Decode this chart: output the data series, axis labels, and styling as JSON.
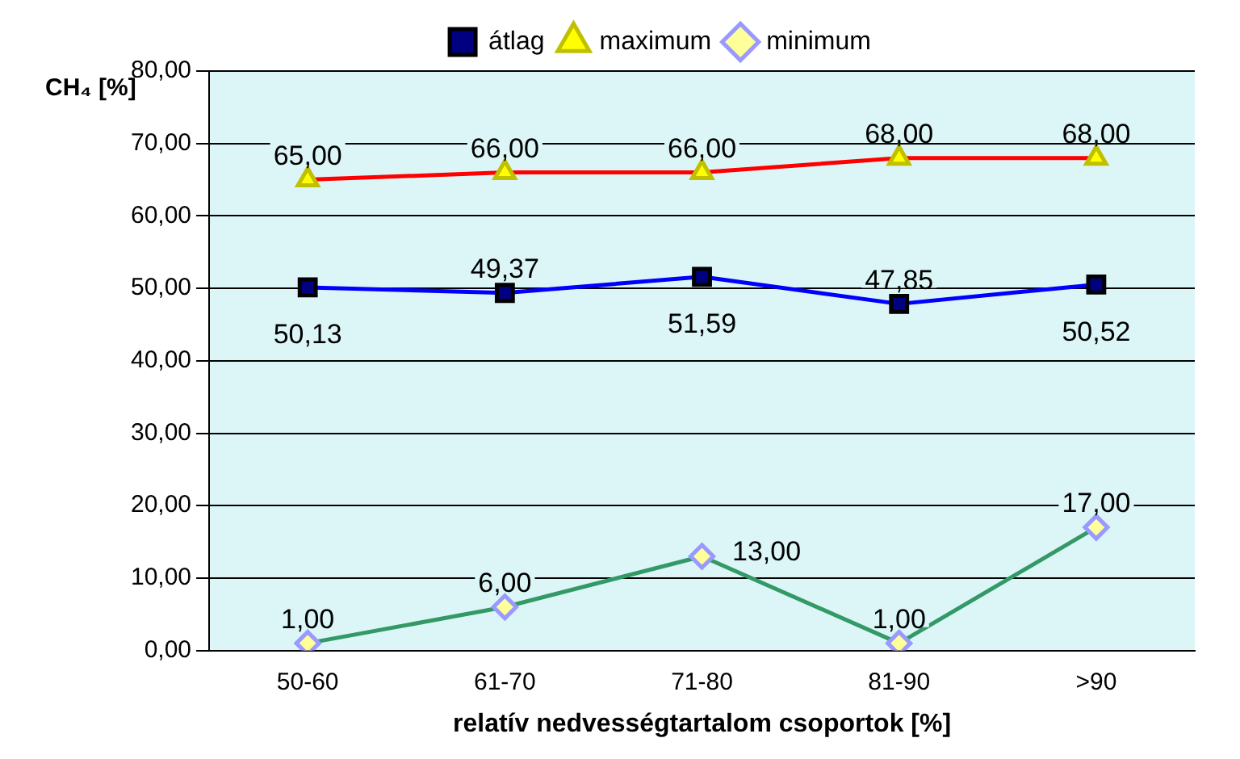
{
  "chart_data": {
    "type": "line",
    "categories": [
      "50-60",
      "61-70",
      "71-80",
      "81-90",
      ">90"
    ],
    "series": [
      {
        "name": "átlag",
        "color": "#0000ff",
        "marker": "square",
        "values": [
          50.13,
          49.37,
          51.59,
          47.85,
          50.52
        ],
        "value_labels": [
          "50,13",
          "49,37",
          "51,59",
          "47,85",
          "50,52"
        ]
      },
      {
        "name": "maximum",
        "color": "#ff0000",
        "marker": "triangle",
        "values": [
          65.0,
          66.0,
          66.0,
          68.0,
          68.0
        ],
        "value_labels": [
          "65,00",
          "66,00",
          "66,00",
          "68,00",
          "68,00"
        ]
      },
      {
        "name": "minimum",
        "color": "#339966",
        "marker": "diamond",
        "values": [
          1.0,
          6.0,
          13.0,
          1.0,
          17.0
        ],
        "value_labels": [
          "1,00",
          "6,00",
          "13,00",
          "1,00",
          "17,00"
        ]
      }
    ],
    "ylabel": "CH₄ [%]",
    "xlabel": "relatív nedvességtartalom csoportok [%]",
    "ylim": [
      0,
      80
    ],
    "yticks": [
      {
        "value": 0,
        "label": "0,00"
      },
      {
        "value": 10,
        "label": "10,00"
      },
      {
        "value": 20,
        "label": "20,00"
      },
      {
        "value": 30,
        "label": "30,00"
      },
      {
        "value": 40,
        "label": "40,00"
      },
      {
        "value": 50,
        "label": "50,00"
      },
      {
        "value": 60,
        "label": "60,00"
      },
      {
        "value": 70,
        "label": "70,00"
      },
      {
        "value": 80,
        "label": "80,00"
      }
    ],
    "grid": "y",
    "legend": "top",
    "line_style": "solid"
  }
}
